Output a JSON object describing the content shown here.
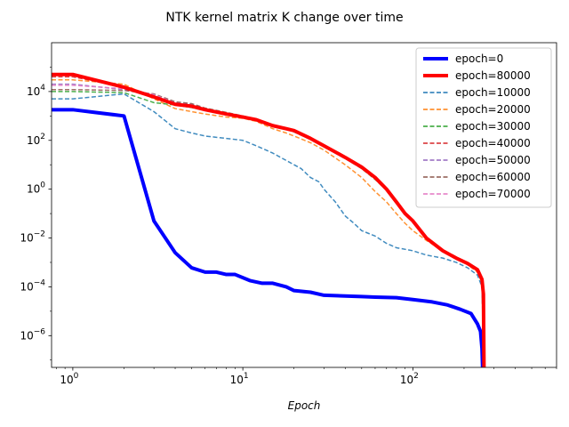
{
  "chart_data": {
    "type": "line",
    "title": "NTK kernel matrix K change over time",
    "xlabel": "Epoch",
    "ylabel": "",
    "xscale": "log",
    "yscale": "log",
    "xlim": [
      0.75,
      700
    ],
    "ylim": [
      5e-08,
      1000000.0
    ],
    "xticks": [
      {
        "value": 1,
        "base": "10",
        "exp": "0"
      },
      {
        "value": 10,
        "base": "10",
        "exp": "1"
      },
      {
        "value": 100,
        "base": "10",
        "exp": "2"
      }
    ],
    "yticks": [
      {
        "value": 10000.0,
        "base": "10",
        "exp": "4"
      },
      {
        "value": 100.0,
        "base": "10",
        "exp": "2"
      },
      {
        "value": 1,
        "base": "10",
        "exp": "0"
      },
      {
        "value": 0.01,
        "base": "10",
        "exp": "−2"
      },
      {
        "value": 0.0001,
        "base": "10",
        "exp": "−4"
      },
      {
        "value": 1e-06,
        "base": "10",
        "exp": "−6"
      }
    ],
    "grid": false,
    "legend_position": "top-right",
    "series": [
      {
        "name": "epoch=0",
        "color": "#0000ff",
        "style": "solid",
        "width": 4,
        "points": [
          [
            0.75,
            1800
          ],
          [
            1,
            1800
          ],
          [
            2,
            1000
          ],
          [
            3,
            0.05
          ],
          [
            4,
            0.0025
          ],
          [
            5,
            0.0006
          ],
          [
            6,
            0.0004
          ],
          [
            7,
            0.0004
          ],
          [
            8,
            0.00032
          ],
          [
            9,
            0.00032
          ],
          [
            11,
            0.00018
          ],
          [
            13,
            0.00014
          ],
          [
            15,
            0.00014
          ],
          [
            18,
            0.0001
          ],
          [
            20,
            7e-05
          ],
          [
            25,
            6e-05
          ],
          [
            30,
            4.5e-05
          ],
          [
            40,
            4.2e-05
          ],
          [
            50,
            4e-05
          ],
          [
            60,
            3.8e-05
          ],
          [
            80,
            3.6e-05
          ],
          [
            100,
            3e-05
          ],
          [
            130,
            2.4e-05
          ],
          [
            160,
            1.8e-05
          ],
          [
            190,
            1.2e-05
          ],
          [
            220,
            8e-06
          ],
          [
            240,
            3e-06
          ],
          [
            250,
            1.5e-06
          ],
          [
            255,
            3e-07
          ],
          [
            257,
            5e-08
          ]
        ]
      },
      {
        "name": "epoch=80000",
        "color": "#ff0000",
        "style": "solid",
        "width": 4,
        "points": [
          [
            0.75,
            50000
          ],
          [
            1,
            50000
          ],
          [
            2,
            15000
          ],
          [
            3,
            6000
          ],
          [
            4,
            3000
          ],
          [
            5,
            2500
          ],
          [
            6,
            1800
          ],
          [
            8,
            1200
          ],
          [
            10,
            900
          ],
          [
            12,
            700
          ],
          [
            15,
            400
          ],
          [
            18,
            300
          ],
          [
            20,
            250
          ],
          [
            25,
            120
          ],
          [
            30,
            60
          ],
          [
            40,
            20
          ],
          [
            50,
            8
          ],
          [
            60,
            3
          ],
          [
            70,
            1
          ],
          [
            80,
            0.3
          ],
          [
            90,
            0.1
          ],
          [
            100,
            0.05
          ],
          [
            120,
            0.01
          ],
          [
            150,
            0.003
          ],
          [
            180,
            0.0015
          ],
          [
            210,
            0.0009
          ],
          [
            240,
            0.0005
          ],
          [
            255,
            0.0002
          ],
          [
            260,
            5e-05
          ],
          [
            262,
            5e-08
          ]
        ]
      },
      {
        "name": "epoch=10000",
        "color": "#1f77b4",
        "style": "dashed",
        "width": 1.5,
        "points": [
          [
            0.75,
            5000
          ],
          [
            1,
            5000
          ],
          [
            2,
            8000
          ],
          [
            3,
            1500
          ],
          [
            4,
            300
          ],
          [
            5,
            200
          ],
          [
            6,
            150
          ],
          [
            8,
            120
          ],
          [
            10,
            100
          ],
          [
            12,
            60
          ],
          [
            15,
            30
          ],
          [
            18,
            15
          ],
          [
            20,
            10
          ],
          [
            22,
            7
          ],
          [
            25,
            3
          ],
          [
            28,
            2
          ],
          [
            30,
            1
          ],
          [
            35,
            0.3
          ],
          [
            40,
            0.08
          ],
          [
            45,
            0.04
          ],
          [
            50,
            0.02
          ],
          [
            60,
            0.012
          ],
          [
            70,
            0.006
          ],
          [
            80,
            0.004
          ],
          [
            100,
            0.003
          ],
          [
            120,
            0.002
          ],
          [
            150,
            0.0015
          ],
          [
            180,
            0.001
          ],
          [
            210,
            0.0006
          ],
          [
            240,
            0.0003
          ],
          [
            255,
            0.0001
          ],
          [
            262,
            5e-08
          ]
        ]
      },
      {
        "name": "epoch=20000",
        "color": "#ff7f0e",
        "style": "dashed",
        "width": 1.5,
        "points": [
          [
            0.75,
            30000
          ],
          [
            1,
            30000
          ],
          [
            2,
            20000
          ],
          [
            3,
            5000
          ],
          [
            4,
            2000
          ],
          [
            5,
            1500
          ],
          [
            6,
            1200
          ],
          [
            8,
            900
          ],
          [
            10,
            800
          ],
          [
            12,
            600
          ],
          [
            15,
            300
          ],
          [
            18,
            200
          ],
          [
            20,
            150
          ],
          [
            25,
            80
          ],
          [
            30,
            40
          ],
          [
            40,
            10
          ],
          [
            50,
            3
          ],
          [
            60,
            0.8
          ],
          [
            70,
            0.3
          ],
          [
            80,
            0.1
          ],
          [
            90,
            0.04
          ],
          [
            100,
            0.02
          ],
          [
            120,
            0.008
          ],
          [
            150,
            0.003
          ],
          [
            180,
            0.0015
          ],
          [
            210,
            0.0008
          ],
          [
            240,
            0.0004
          ],
          [
            255,
            0.00015
          ],
          [
            262,
            5e-08
          ]
        ]
      },
      {
        "name": "epoch=30000",
        "color": "#2ca02c",
        "style": "dashed",
        "width": 1.5,
        "points": [
          [
            0.75,
            10000
          ],
          [
            1,
            10000
          ],
          [
            2,
            9000
          ],
          [
            3,
            3500
          ],
          [
            4,
            2800
          ],
          [
            5,
            2200
          ],
          [
            6,
            1700
          ],
          [
            8,
            1200
          ],
          [
            10,
            900
          ],
          [
            12,
            700
          ],
          [
            15,
            400
          ],
          [
            18,
            300
          ],
          [
            20,
            220
          ],
          [
            25,
            110
          ],
          [
            30,
            55
          ],
          [
            40,
            18
          ],
          [
            50,
            7
          ],
          [
            60,
            2.5
          ],
          [
            70,
            0.9
          ],
          [
            80,
            0.3
          ],
          [
            90,
            0.1
          ],
          [
            100,
            0.05
          ],
          [
            120,
            0.01
          ],
          [
            150,
            0.003
          ],
          [
            180,
            0.0015
          ],
          [
            210,
            0.0009
          ],
          [
            240,
            0.0005
          ],
          [
            255,
            0.0002
          ],
          [
            262,
            5e-08
          ]
        ]
      },
      {
        "name": "epoch=40000",
        "color": "#d62728",
        "style": "dashed",
        "width": 1.5,
        "points": [
          [
            0.75,
            40000
          ],
          [
            1,
            40000
          ],
          [
            2,
            15000
          ],
          [
            3,
            6500
          ],
          [
            4,
            3200
          ],
          [
            5,
            2600
          ],
          [
            6,
            1900
          ],
          [
            8,
            1250
          ],
          [
            10,
            950
          ],
          [
            12,
            720
          ],
          [
            15,
            420
          ],
          [
            18,
            310
          ],
          [
            20,
            260
          ],
          [
            25,
            125
          ],
          [
            30,
            62
          ],
          [
            40,
            21
          ],
          [
            50,
            8.5
          ],
          [
            60,
            3.2
          ],
          [
            70,
            1.1
          ],
          [
            80,
            0.32
          ],
          [
            90,
            0.11
          ],
          [
            100,
            0.055
          ],
          [
            120,
            0.011
          ],
          [
            150,
            0.0032
          ],
          [
            180,
            0.0016
          ],
          [
            210,
            0.0009
          ],
          [
            240,
            0.0005
          ],
          [
            255,
            0.0002
          ],
          [
            262,
            5e-08
          ]
        ]
      },
      {
        "name": "epoch=50000",
        "color": "#9467bd",
        "style": "dashed",
        "width": 1.5,
        "points": [
          [
            0.75,
            20000
          ],
          [
            1,
            20000
          ],
          [
            2,
            12000
          ],
          [
            3,
            7000
          ],
          [
            4,
            3500
          ],
          [
            5,
            3000
          ],
          [
            6,
            2000
          ],
          [
            8,
            1300
          ],
          [
            10,
            950
          ],
          [
            12,
            700
          ],
          [
            15,
            400
          ],
          [
            18,
            300
          ],
          [
            20,
            230
          ],
          [
            25,
            110
          ],
          [
            30,
            55
          ],
          [
            40,
            18
          ],
          [
            50,
            7.5
          ],
          [
            60,
            2.8
          ],
          [
            70,
            1
          ],
          [
            80,
            0.3
          ],
          [
            90,
            0.1
          ],
          [
            100,
            0.05
          ],
          [
            120,
            0.01
          ],
          [
            150,
            0.003
          ],
          [
            180,
            0.0015
          ],
          [
            210,
            0.0009
          ],
          [
            240,
            0.0005
          ],
          [
            255,
            0.0002
          ],
          [
            262,
            5e-08
          ]
        ]
      },
      {
        "name": "epoch=60000",
        "color": "#8c564b",
        "style": "dashed",
        "width": 1.5,
        "points": [
          [
            0.75,
            12000
          ],
          [
            1,
            12000
          ],
          [
            2,
            11000
          ],
          [
            3,
            8000
          ],
          [
            4,
            3800
          ],
          [
            5,
            3200
          ],
          [
            6,
            2100
          ],
          [
            8,
            1400
          ],
          [
            10,
            1000
          ],
          [
            12,
            750
          ],
          [
            15,
            430
          ],
          [
            18,
            320
          ],
          [
            20,
            240
          ],
          [
            25,
            120
          ],
          [
            30,
            58
          ],
          [
            40,
            19
          ],
          [
            50,
            8
          ],
          [
            60,
            3
          ],
          [
            70,
            1
          ],
          [
            80,
            0.3
          ],
          [
            90,
            0.1
          ],
          [
            100,
            0.05
          ],
          [
            120,
            0.01
          ],
          [
            150,
            0.003
          ],
          [
            180,
            0.0015
          ],
          [
            210,
            0.0009
          ],
          [
            240,
            0.0005
          ],
          [
            255,
            0.0002
          ],
          [
            262,
            5e-08
          ]
        ]
      },
      {
        "name": "epoch=70000",
        "color": "#e377c2",
        "style": "dashed",
        "width": 1.5,
        "points": [
          [
            0.75,
            18000
          ],
          [
            1,
            18000
          ],
          [
            2,
            13000
          ],
          [
            3,
            7500
          ],
          [
            4,
            3400
          ],
          [
            5,
            2800
          ],
          [
            6,
            1950
          ],
          [
            8,
            1280
          ],
          [
            10,
            930
          ],
          [
            12,
            710
          ],
          [
            15,
            410
          ],
          [
            18,
            305
          ],
          [
            20,
            245
          ],
          [
            25,
            118
          ],
          [
            30,
            58
          ],
          [
            40,
            19.5
          ],
          [
            50,
            8
          ],
          [
            60,
            3
          ],
          [
            70,
            1.05
          ],
          [
            80,
            0.31
          ],
          [
            90,
            0.105
          ],
          [
            100,
            0.052
          ],
          [
            120,
            0.0105
          ],
          [
            150,
            0.0031
          ],
          [
            180,
            0.00155
          ],
          [
            210,
            0.0009
          ],
          [
            240,
            0.0005
          ],
          [
            255,
            0.0002
          ],
          [
            262,
            5e-08
          ]
        ]
      }
    ]
  }
}
